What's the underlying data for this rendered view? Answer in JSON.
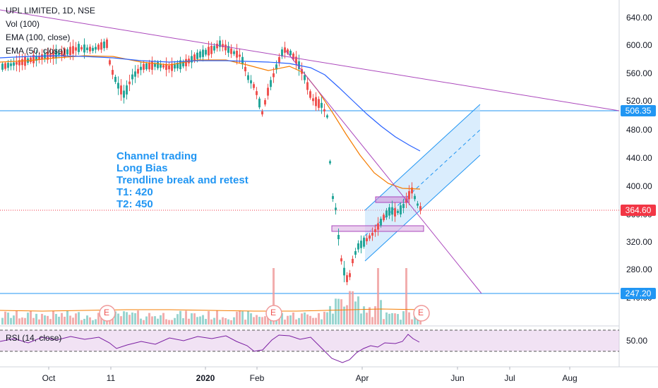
{
  "header": {
    "symbol_line": "UPL LIMITED, 1D, NSE",
    "indicators": [
      "Vol (100)",
      "EMA (100, close)",
      "EMA (50, close)"
    ]
  },
  "annotation": {
    "lines": [
      "Channel trading",
      "Long Bias",
      "Trendline break and retest",
      "T1: 420",
      "T2: 450"
    ]
  },
  "rsi": {
    "label": "RSI (14, close)",
    "tick": "50.00"
  },
  "price_axis": {
    "ticks": [
      "640.00",
      "600.00",
      "560.00",
      "520.00",
      "480.00",
      "440.00",
      "400.00",
      "360.00",
      "320.00",
      "280.00",
      "240.00"
    ],
    "tags": [
      {
        "label": "506.35",
        "color": "#2196f3"
      },
      {
        "label": "364.60",
        "color": "#f23645"
      },
      {
        "label": "247.20",
        "color": "#2196f3"
      }
    ]
  },
  "time_axis": {
    "labels": [
      "Oct",
      "11",
      "2020",
      "Feb",
      "Apr",
      "Jun",
      "Jul",
      "Aug"
    ]
  },
  "events": {
    "earnings_marker": "E"
  },
  "colors": {
    "up": "#26a69a",
    "down": "#ef5350",
    "ema100": "#2962ff",
    "ema50": "#f57c00",
    "trendline": "#ab47bc",
    "channel": "#2196f3",
    "rsi": "#7b1fa2"
  }
}
